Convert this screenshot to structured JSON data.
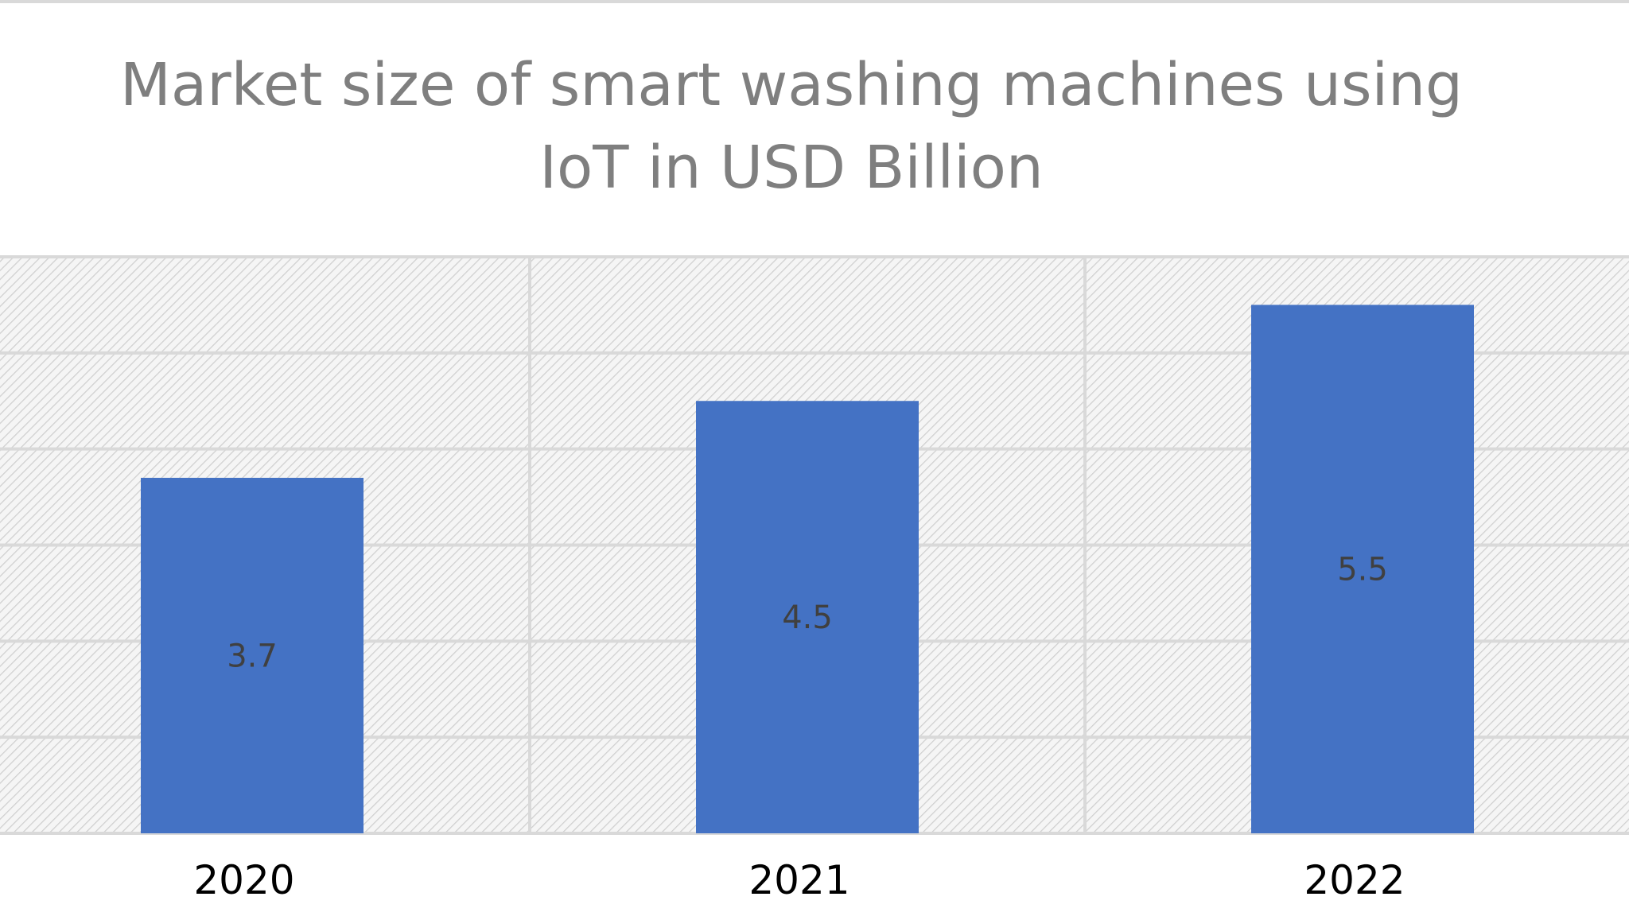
{
  "chart_data": {
    "type": "bar",
    "title": "Market size of smart washing machines using IoT in USD Billion",
    "categories": [
      "2020",
      "2021",
      "2022"
    ],
    "values": [
      3.7,
      4.5,
      5.5
    ],
    "data_labels": [
      "3.7",
      "4.5",
      "5.5"
    ],
    "xlabel": "",
    "ylabel": "",
    "ylim": [
      0,
      6
    ],
    "grid": true,
    "legend": "none",
    "bar_color": "#4472c4",
    "background_pattern": "diagonal-hatch"
  }
}
